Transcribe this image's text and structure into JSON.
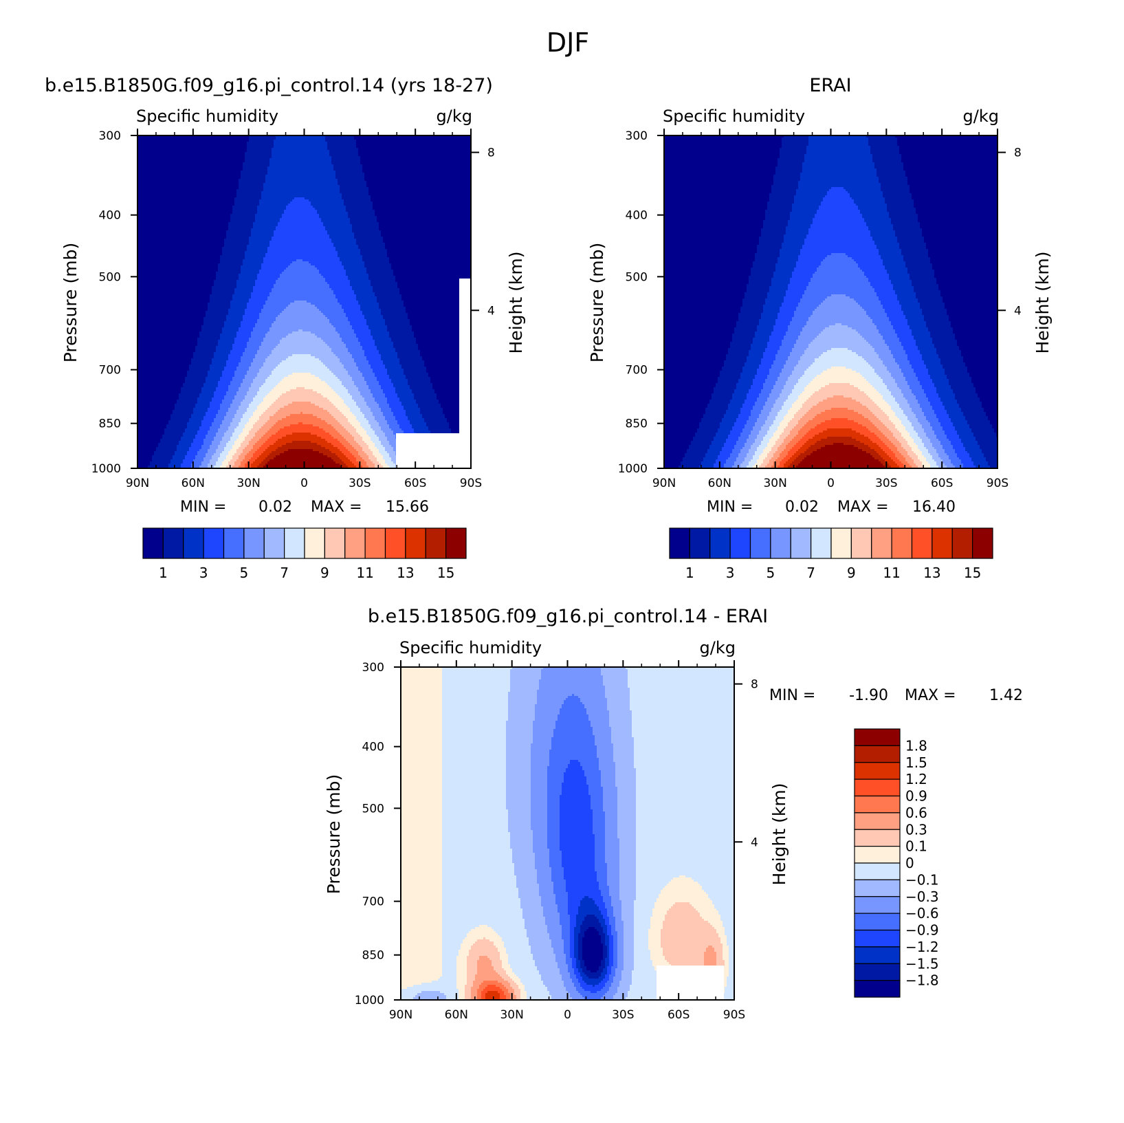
{
  "figure_title": "DJF",
  "colors": {
    "abs_levels": [
      "#00008c",
      "#0019a5",
      "#0032c8",
      "#1e46ff",
      "#466eff",
      "#7896ff",
      "#a0b9ff",
      "#d2e6ff",
      "#fff0dc",
      "#ffc8b4",
      "#ffa082",
      "#ff7850",
      "#ff5028",
      "#dc3200",
      "#b41e00",
      "#8c0000"
    ],
    "diff_levels": [
      "#00008c",
      "#0019a5",
      "#0032c8",
      "#1e46ff",
      "#466eff",
      "#7896ff",
      "#a0b9ff",
      "#d2e6ff",
      "#fff0dc",
      "#ffc8b4",
      "#ffa082",
      "#ff7850",
      "#ff5028",
      "#dc3200",
      "#b41e00",
      "#8c0000"
    ]
  },
  "panels": [
    {
      "title": "b.e15.B1850G.f09_g16.pi_control.14 (yrs 18-27)",
      "left_label": "Specific humidity",
      "right_label": "g/kg",
      "ylabel": "Pressure (mb)",
      "ylabel_right": "Height (km)",
      "min_label": "MIN =",
      "min_value": "0.02",
      "max_label": "MAX =",
      "max_value": "15.66",
      "colorbar_labels": [
        "1",
        "3",
        "5",
        "7",
        "9",
        "11",
        "13",
        "15"
      ]
    },
    {
      "title": "ERAI",
      "left_label": "Specific humidity",
      "right_label": "g/kg",
      "ylabel": "Pressure (mb)",
      "ylabel_right": "Height (km)",
      "min_label": "MIN =",
      "min_value": "0.02",
      "max_label": "MAX =",
      "max_value": "16.40",
      "colorbar_labels": [
        "1",
        "3",
        "5",
        "7",
        "9",
        "11",
        "13",
        "15"
      ]
    },
    {
      "title": "b.e15.B1850G.f09_g16.pi_control.14 - ERAI",
      "left_label": "Specific humidity",
      "right_label": "g/kg",
      "ylabel": "Pressure (mb)",
      "ylabel_right": "Height (km)",
      "min_label": "MIN =",
      "min_value": "-1.90",
      "max_label": "MAX =",
      "max_value": "1.42",
      "colorbar_labels": [
        "1.8",
        "1.5",
        "1.2",
        "0.9",
        "0.6",
        "0.3",
        "0.1",
        "0",
        "-0.1",
        "-0.3",
        "-0.6",
        "-0.9",
        "-1.2",
        "-1.5",
        "-1.8"
      ]
    }
  ],
  "chart_data": [
    {
      "type": "heatmap",
      "title": "b.e15.B1850G.f09_g16.pi_control.14 (yrs 18-27)",
      "xlabel": "",
      "ylabel": "Pressure (mb)",
      "ylabel_right": "Height (km)",
      "x_ticks": [
        "90N",
        "60N",
        "30N",
        "0",
        "30S",
        "60S",
        "90S"
      ],
      "y_ticks": [
        300,
        400,
        500,
        700,
        850,
        1000
      ],
      "right_ticks": [
        8,
        4
      ],
      "ylim": [
        1000,
        300
      ],
      "xlim": [
        90,
        -90
      ],
      "y_scale": "log",
      "units": "g/kg",
      "contour_levels": [
        1,
        2,
        3,
        4,
        5,
        6,
        7,
        8,
        9,
        10,
        11,
        12,
        13,
        14,
        15
      ],
      "peak": {
        "lat": 0,
        "pressure": 1000,
        "value": 15.66
      },
      "min": 0.02,
      "max": 15.66,
      "missing_region": "southern high latitudes near surface (~50S-85S, below ~920 mb)"
    },
    {
      "type": "heatmap",
      "title": "ERAI",
      "xlabel": "",
      "ylabel": "Pressure (mb)",
      "ylabel_right": "Height (km)",
      "x_ticks": [
        "90N",
        "60N",
        "30N",
        "0",
        "30S",
        "60S",
        "90S"
      ],
      "y_ticks": [
        300,
        400,
        500,
        700,
        850,
        1000
      ],
      "right_ticks": [
        8,
        4
      ],
      "ylim": [
        1000,
        300
      ],
      "xlim": [
        90,
        -90
      ],
      "y_scale": "log",
      "units": "g/kg",
      "contour_levels": [
        1,
        2,
        3,
        4,
        5,
        6,
        7,
        8,
        9,
        10,
        11,
        12,
        13,
        14,
        15
      ],
      "peak": {
        "lat": -3,
        "pressure": 1000,
        "value": 16.4
      },
      "min": 0.02,
      "max": 16.4
    },
    {
      "type": "heatmap",
      "title": "b.e15.B1850G.f09_g16.pi_control.14 - ERAI",
      "xlabel": "",
      "ylabel": "Pressure (mb)",
      "ylabel_right": "Height (km)",
      "x_ticks": [
        "90N",
        "60N",
        "30N",
        "0",
        "30S",
        "60S",
        "90S"
      ],
      "y_ticks": [
        300,
        400,
        500,
        700,
        850,
        1000
      ],
      "right_ticks": [
        8,
        4
      ],
      "ylim": [
        1000,
        300
      ],
      "xlim": [
        90,
        -90
      ],
      "y_scale": "log",
      "units": "g/kg",
      "contour_levels": [
        -1.8,
        -1.5,
        -1.2,
        -0.9,
        -0.6,
        -0.3,
        -0.1,
        0,
        0.1,
        0.3,
        0.6,
        0.9,
        1.2,
        1.5,
        1.8
      ],
      "min": -1.9,
      "max": 1.42,
      "features": [
        {
          "lat": -14,
          "pressure": 850,
          "value": -1.9,
          "note": "minimum"
        },
        {
          "lat": 40,
          "pressure": 990,
          "value": 1.42,
          "note": "maximum"
        }
      ]
    }
  ]
}
